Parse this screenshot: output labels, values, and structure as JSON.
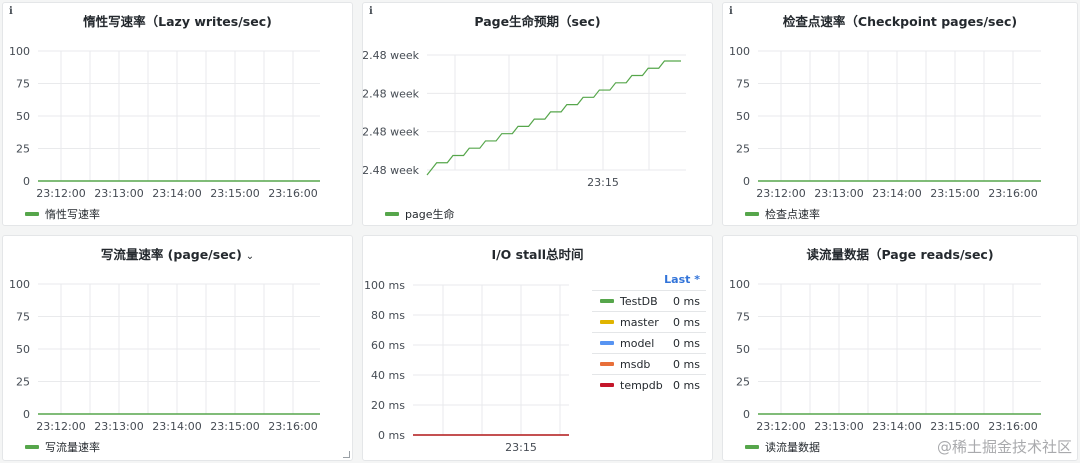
{
  "colors": {
    "green": "#56a64b",
    "yellow": "#e0b400",
    "blue": "#5794f2",
    "orange": "#e86f39",
    "red": "#c4162a",
    "grid": "#e9eaec",
    "axis_text": "#464c54",
    "link_blue": "#3274d9"
  },
  "panels": {
    "lazy_writes": {
      "info": "i",
      "title": "惰性写速率（Lazy writes/sec)",
      "yticks": [
        "100",
        "75",
        "50",
        "25",
        "0"
      ],
      "xticks": [
        "23:12:00",
        "23:13:00",
        "23:14:00",
        "23:15:00",
        "23:16:00"
      ],
      "legend": "惰性写速率"
    },
    "page_life": {
      "info": "i",
      "title": "Page生命预期（sec)",
      "yticks": [
        "2.48 week",
        "2.48 week",
        "2.48 week",
        "2.48 week"
      ],
      "xticks": [
        "23:15"
      ],
      "legend": "page生命"
    },
    "checkpoint": {
      "info": "i",
      "title": "检查点速率（Checkpoint pages/sec)",
      "yticks": [
        "100",
        "75",
        "50",
        "25",
        "0"
      ],
      "xticks": [
        "23:12:00",
        "23:13:00",
        "23:14:00",
        "23:15:00",
        "23:16:00"
      ],
      "legend": "检查点速率"
    },
    "write_flow": {
      "title": "写流量速率 (page/sec)",
      "chevron": "⌄",
      "yticks": [
        "100",
        "75",
        "50",
        "25",
        "0"
      ],
      "xticks": [
        "23:12:00",
        "23:13:00",
        "23:14:00",
        "23:15:00",
        "23:16:00"
      ],
      "legend": "写流量速率"
    },
    "io_stall": {
      "title": "I/O stall总时间",
      "yticks": [
        "100 ms",
        "80 ms",
        "60 ms",
        "40 ms",
        "20 ms",
        "0 ms"
      ],
      "xticks": [
        "23:15"
      ],
      "table_header": "Last *",
      "series": [
        {
          "name": "TestDB",
          "value": "0 ms",
          "color": "#56a64b"
        },
        {
          "name": "master",
          "value": "0 ms",
          "color": "#e0b400"
        },
        {
          "name": "model",
          "value": "0 ms",
          "color": "#5794f2"
        },
        {
          "name": "msdb",
          "value": "0 ms",
          "color": "#e86f39"
        },
        {
          "name": "tempdb",
          "value": "0 ms",
          "color": "#c4162a"
        }
      ]
    },
    "page_reads": {
      "title": "读流量数据（Page reads/sec)",
      "yticks": [
        "100",
        "75",
        "50",
        "25",
        "0"
      ],
      "xticks": [
        "23:12:00",
        "23:13:00",
        "23:14:00",
        "23:15:00",
        "23:16:00"
      ],
      "legend": "读流量数据"
    }
  },
  "watermark": "@稀土掘金技术社区"
}
